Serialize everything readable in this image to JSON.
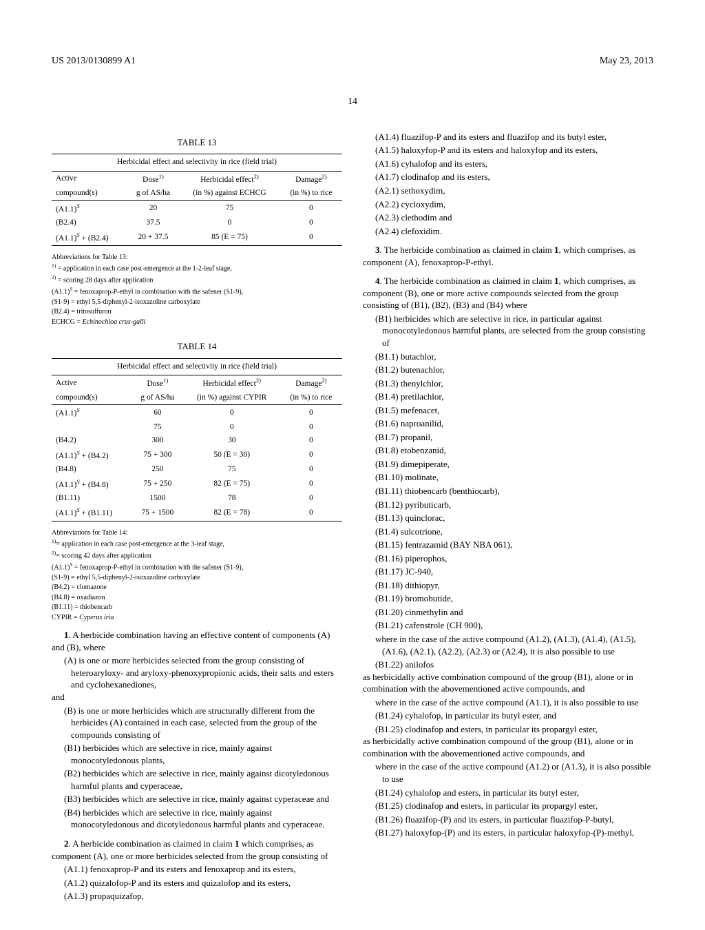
{
  "header": {
    "left": "US 2013/0130899 A1",
    "right": "May 23, 2013"
  },
  "page_num": "14",
  "table13": {
    "label": "TABLE 13",
    "caption": "Herbicidal effect and selectivity in rice (field trial)",
    "col1a": "Active",
    "col1b": "compound(s)",
    "col2a": "Dose",
    "col2sup": "1)",
    "col2b": "g of AS/ha",
    "col3a": "Herbicidal effect",
    "col3sup": "2)",
    "col3b": "(in %) against ECHCG",
    "col4a": "Damage",
    "col4sup": "2)",
    "col4b": "(in %) to rice",
    "rows": [
      {
        "c1": "(A1.1)",
        "c1sup": "S",
        "c2": "20",
        "c3": "75",
        "c4": "0"
      },
      {
        "c1": "(B2.4)",
        "c2": "37.5",
        "c3": "0",
        "c4": "0"
      },
      {
        "c1": "(A1.1)",
        "c1sup": "S",
        "c1b": " + (B2.4)",
        "c2": "20 + 37.5",
        "c3": "85 (E = 75)",
        "c4": "0"
      }
    ],
    "abbrev_title": "Abbreviations for Table 13:",
    "abbrev": [
      {
        "sup": "1)",
        "t": " = application in each case post-emergence at the 1-2-leaf stage,"
      },
      {
        "sup": "2)",
        "t": " = scoring 28 days after application"
      },
      {
        "t": "(A1.1)",
        "sup2": "S",
        "t2": " = fenoxaprop-P-ethyl in combination with the safener (S1-9),"
      },
      {
        "t": "(S1-9) = ethyl 5,5-diphenyl-2-isoxazoline carboxylate"
      },
      {
        "t": "(B2.4) = tritosulfuron"
      },
      {
        "t": "ECHCG = ",
        "it": "Echinochloa crus-galli"
      }
    ]
  },
  "table14": {
    "label": "TABLE 14",
    "caption": "Herbicidal effect and selectivity in rice (field trial)",
    "rows": [
      {
        "c1": "(A1.1)",
        "c1sup": "S",
        "c2": "60",
        "c3": "0",
        "c4": "0"
      },
      {
        "c1": "",
        "c2": "75",
        "c3": "0",
        "c4": "0"
      },
      {
        "c1": "(B4.2)",
        "c2": "300",
        "c3": "30",
        "c4": "0"
      },
      {
        "c1": "(A1.1)",
        "c1sup": "S",
        "c1b": " + (B4.2)",
        "c2": "75 + 300",
        "c3": "50 (E = 30)",
        "c4": "0"
      },
      {
        "c1": "(B4.8)",
        "c2": "250",
        "c3": "75",
        "c4": "0"
      },
      {
        "c1": "(A1.1)",
        "c1sup": "S",
        "c1b": " + (B4.8)",
        "c2": "75 + 250",
        "c3": "82 (E = 75)",
        "c4": "0"
      },
      {
        "c1": "(B1.11)",
        "c2": "1500",
        "c3": "78",
        "c4": "0"
      },
      {
        "c1": "(A1.1)",
        "c1sup": "S",
        "c1b": " + (B1.11)",
        "c2": "75 + 1500",
        "c3": "82 (E = 78)",
        "c4": "0"
      }
    ],
    "col3b": "(in %) against CYPIR",
    "abbrev_title": "Abbreviations for Table 14:",
    "abbrev": [
      {
        "sup": "1)",
        "t": "= application in each case post-emergence at the 3-leaf stage,"
      },
      {
        "sup": "2)",
        "t": "= scoring 42 days after application"
      },
      {
        "t": "(A1.1)",
        "sup2": "S",
        "t2": " = fenoxaprop-P-ethyl in combination with the safener (S1-9),"
      },
      {
        "t": "(S1-9) = ethyl 5,5-diphenyl-2-isoxazoline carboxylate"
      },
      {
        "t": "(B4.2) = clomazone"
      },
      {
        "t": "(B4.8) = oxadiazon"
      },
      {
        "t": "(B1.11) = thiobencarb"
      },
      {
        "t": "CYPIR = ",
        "it": "Cyperus iria"
      }
    ]
  },
  "claims_left": {
    "c1": "1. A herbicide combination having an effective content of components (A) and (B), where",
    "c1a": "(A) is one or more herbicides selected from the group consisting of heteroaryloxy- and aryloxy-phenoxypropionic acids, their salts and esters and cyclohexanediones,",
    "and": "and",
    "c1b": "(B) is one or more herbicides which are structurally different from the herbicides (A) contained in each case, selected from the group of the compounds consisting of",
    "b1": "(B1) herbicides which are selective in rice, mainly against monocotyledonous plants,",
    "b2": "(B2) herbicides which are selective in rice, mainly against dicotyledonous harmful plants and cyperaceae,",
    "b3": "(B3) herbicides which are selective in rice, mainly against cyperaceae and",
    "b4": "(B4) herbicides which are selective in rice, mainly against monocotyledonous and dicotyledonous harmful plants and cyperaceae.",
    "c2": "2. A herbicide combination as claimed in claim 1 which comprises, as component (A), one or more herbicides selected from the group consisting of",
    "a11": "(A1.1) fenoxaprop-P and its esters and fenoxaprop and its esters,",
    "a12": "(A1.2) quizalofop-P and its esters and quizalofop and its esters,",
    "a13": "(A1.3) propaquizafop,"
  },
  "right": {
    "a14": "(A1.4) fluazifop-P and its esters and fluazifop and its butyl ester,",
    "a15": "(A1.5) haloxyfop-P and its esters and haloxyfop and its esters,",
    "a16": "(A1.6) cyhalofop and its esters,",
    "a17": "(A1.7) clodinafop and its esters,",
    "a21": "(A2.1) sethoxydim,",
    "a22": "(A2.2) cycloxydim,",
    "a23": "(A2.3) clethodim and",
    "a24": "(A2.4) clefoxidim.",
    "c3": "3. The herbicide combination as claimed in claim 1, which comprises, as component (A), fenoxaprop-P-ethyl.",
    "c4": "4. The herbicide combination as claimed in claim 1, which comprises, as component (B), one or more active compounds selected from the group consisting of (B1), (B2), (B3) and (B4) where",
    "b1": "(B1) herbicides which are selective in rice, in particular against monocotyledonous harmful plants, are selected from the group consisting of",
    "b11": "(B1.1) butachlor,",
    "b12": "(B1.2) butenachlor,",
    "b13": "(B1.3) thenylchlor,",
    "b14": "(B1.4) pretilachlor,",
    "b15": "(B1.5) mefenacet,",
    "b16": "(B1.6) naproanilid,",
    "b17": "(B1.7) propanil,",
    "b18": "(B1.8) etobenzanid,",
    "b19": "(B1.9) dimepiperate,",
    "b110": "(B1.10) molinate,",
    "b111": "(B1.11) thiobencarb (benthiocarb),",
    "b112": "(B1.12) pyributicarb,",
    "b113": "(B1.13) quinclorac,",
    "b114": "(B1.4) sulcotrione,",
    "b115": "(B1.15) fentrazamid (BAY NBA 061),",
    "b116": "(B1.16) piperophos,",
    "b117": "(B1.17) JC-940,",
    "b118": "(B1.18) dithiopyr,",
    "b119": "(B1.19) bromobutide,",
    "b120": "(B1.20) cinmethylin and",
    "b121": "(B1.21) cafenstrole (CH 900),",
    "wherein1": "where in the case of the active compound (A1.2), (A1.3), (A1.4), (A1.5), (A1.6), (A2.1), (A2.2), (A2.3) or (A2.4), it is also possible to use",
    "b122": "(B1.22) anilofos",
    "as1": "as herbicidally active combination compound of the group (B1), alone or in combination with the abovementioned active compounds, and",
    "wherein2": "where in the case of the active compound (A1.1), it is also possible to use",
    "b124": "(B1.24) cyhalofop, in particular its butyl ester, and",
    "b125": "(B1.25) clodinafop and esters, in particular its propargyl ester,",
    "as2": "as herbicidally active combination compound of the group (B1), alone or in combination with the abovementioned active compounds, and",
    "wherein3": "where in the case of the active compound (A1.2) or (A1.3), it is also possible to use",
    "b124b": "(B1.24) cyhalofop and esters, in particular its butyl ester,",
    "b125b": "(B1.25) clodinafop and esters, in particular its propargyl ester,",
    "b126": "(B1.26) fluazifop-(P) and its esters, in particular fluazifop-P-butyl,",
    "b127": "(B1.27) haloxyfop-(P) and its esters, in particular haloxyfop-(P)-methyl,"
  }
}
